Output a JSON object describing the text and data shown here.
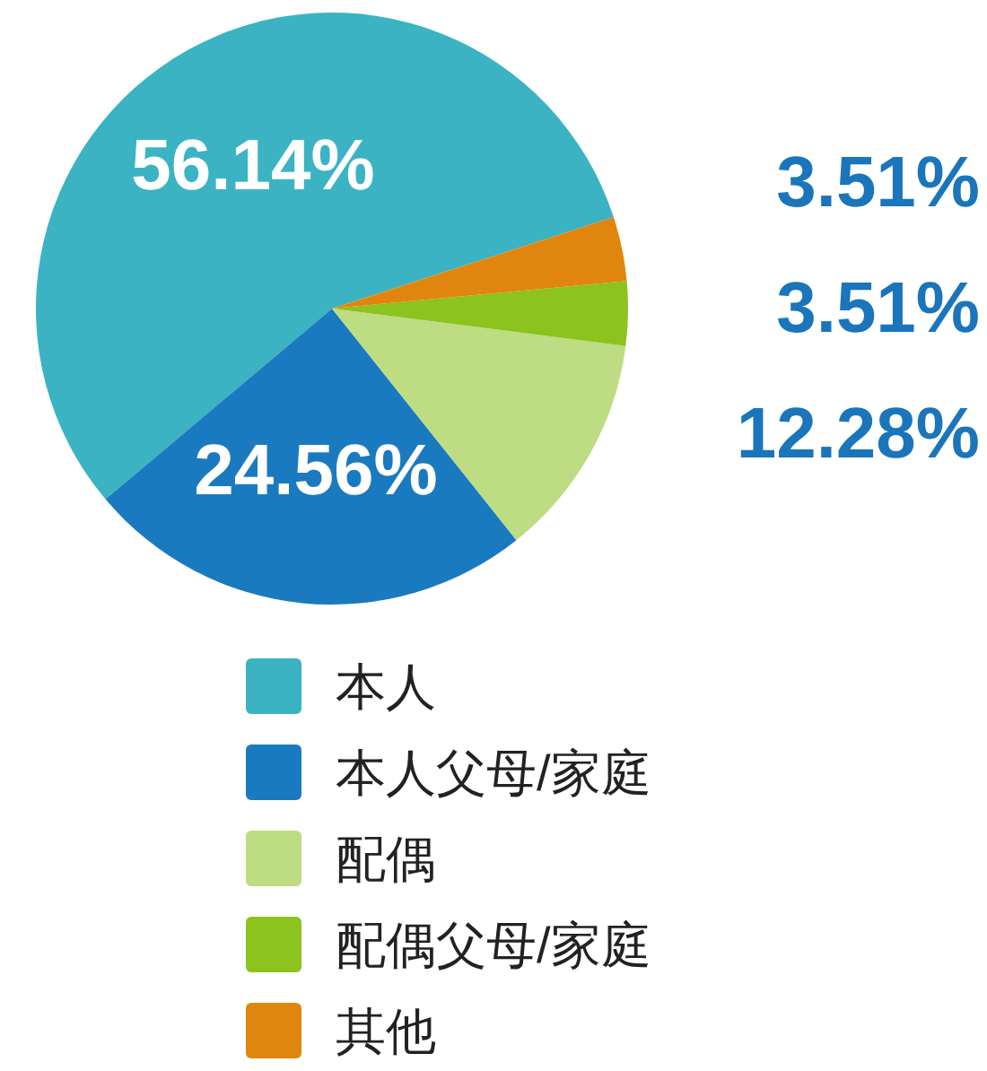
{
  "chart_data": {
    "type": "pie",
    "categories": [
      "本人",
      "本人父母/家庭",
      "配偶",
      "配偶父母/家庭",
      "其他"
    ],
    "values": [
      56.14,
      24.56,
      12.28,
      3.51,
      3.51
    ],
    "colors": [
      "#3bb3c3",
      "#1a7abf",
      "#bedc82",
      "#8cc31e",
      "#e0860f"
    ],
    "value_labels": [
      "56.14%",
      "24.56%",
      "12.28%",
      "3.51%",
      "3.51%"
    ],
    "legend": "bottom"
  }
}
